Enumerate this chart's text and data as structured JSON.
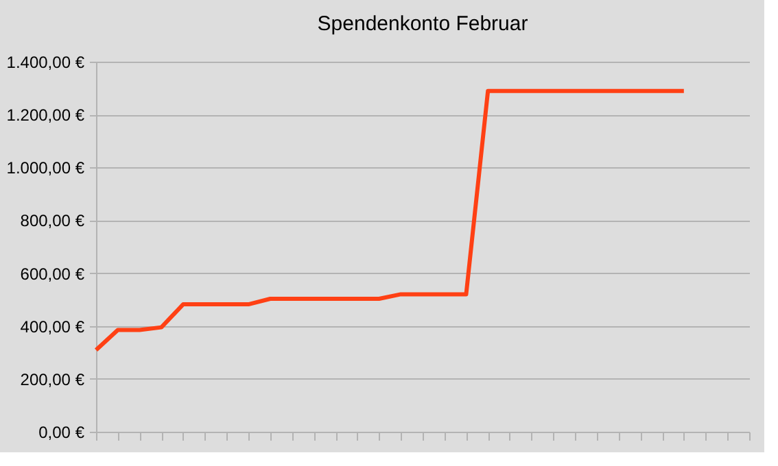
{
  "chart_data": {
    "type": "line",
    "title": "Spendenkonto Februar",
    "categories": [
      null,
      null,
      null,
      null,
      null,
      null,
      null,
      null,
      null,
      null,
      null,
      null,
      null,
      null,
      null,
      null,
      null,
      null,
      null,
      null,
      null,
      null,
      null,
      null,
      null,
      null,
      null,
      null,
      null,
      null,
      null
    ],
    "series": [
      {
        "color": "#ff4014",
        "values": [
          309,
          385,
          385,
          395,
          482,
          482,
          482,
          482,
          503,
          503,
          503,
          503,
          503,
          503,
          520,
          520,
          520,
          520,
          1289,
          1289,
          1289,
          1289,
          1289,
          1289,
          1289,
          1289,
          1289,
          1289,
          null,
          null,
          null
        ]
      }
    ],
    "ylim": [
      0,
      1400
    ],
    "yticks": [
      {
        "value": 0,
        "label": "0,00 €"
      },
      {
        "value": 200,
        "label": "200,00 €"
      },
      {
        "value": 400,
        "label": "400,00 €"
      },
      {
        "value": 600,
        "label": "600,00 €"
      },
      {
        "value": 800,
        "label": "800,00 €"
      },
      {
        "value": 1000,
        "label": "1.000,00 €"
      },
      {
        "value": 1200,
        "label": "1.200,00 €"
      },
      {
        "value": 1400,
        "label": "1.400,00 €"
      }
    ],
    "grid": "y",
    "legend": false,
    "tick_labels": "y",
    "marker": "none",
    "line_style": "solid"
  }
}
